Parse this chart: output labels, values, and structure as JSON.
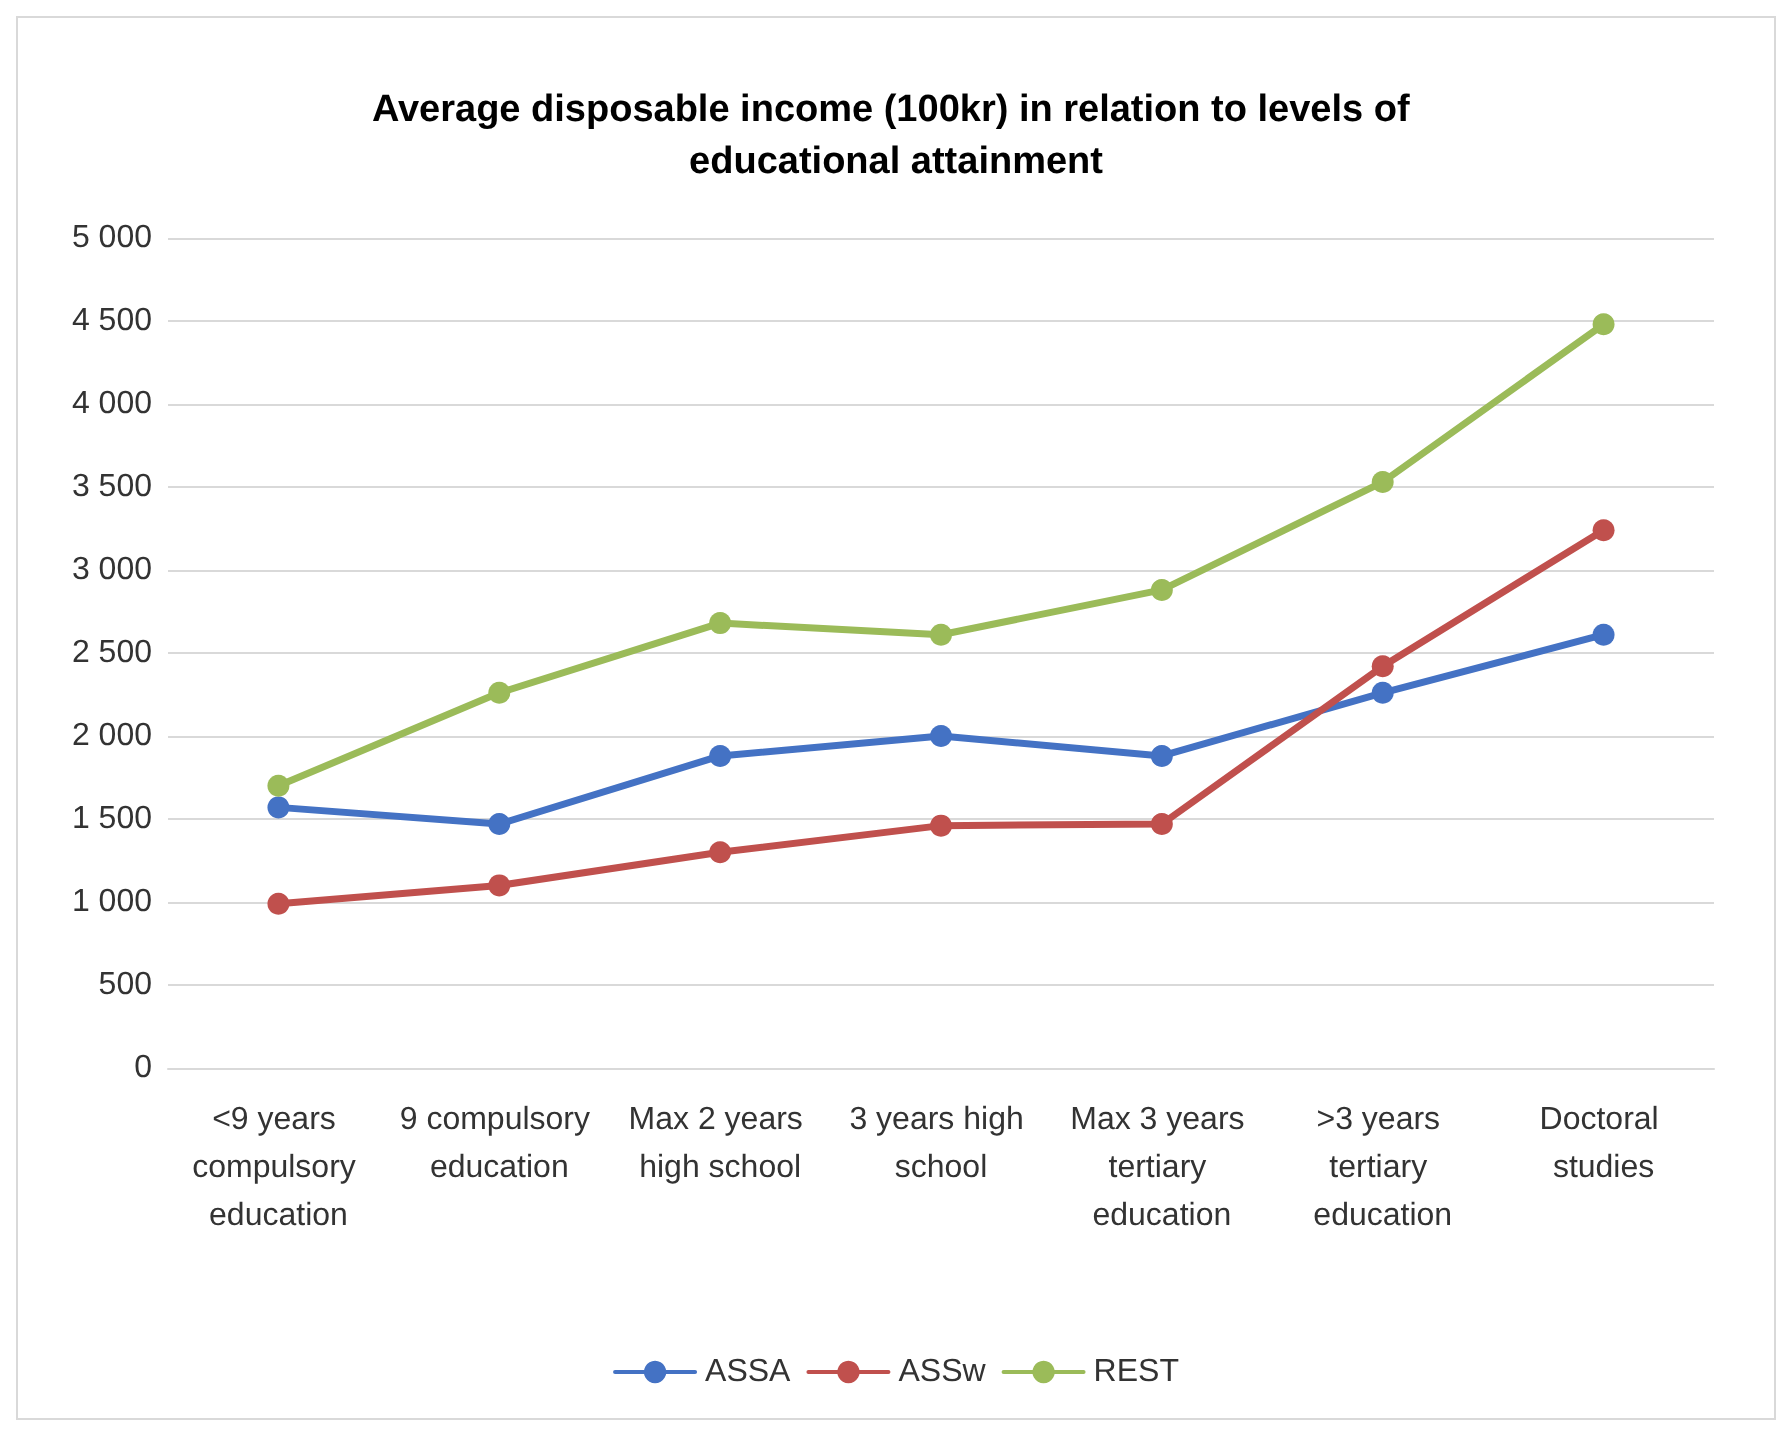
{
  "chart_data": {
    "type": "line",
    "title": "Average disposable income (100kr) in relation to levels of educational attainment",
    "categories": [
      "<9 years compulsory education",
      "9 compulsory education",
      "Max 2 years high school",
      "3 years high school",
      "Max 3 years tertiary education",
      ">3 years tertiary education",
      "Doctoral studies"
    ],
    "series": [
      {
        "name": "ASSA",
        "color": "#4472c4",
        "values": [
          1570,
          1470,
          1880,
          2000,
          1880,
          2260,
          2610
        ]
      },
      {
        "name": "ASSw",
        "color": "#c0504d",
        "values": [
          990,
          1100,
          1300,
          1460,
          1470,
          2420,
          3240
        ]
      },
      {
        "name": "REST",
        "color": "#9bbb59",
        "values": [
          1700,
          2260,
          2680,
          2610,
          2880,
          3530,
          4480
        ]
      }
    ],
    "ylim": [
      0,
      5000
    ],
    "yticks": [
      0,
      500,
      {
        "value": 1000,
        "label": "1 000"
      },
      {
        "value": 1500,
        "label": "1 500"
      },
      {
        "value": 2000,
        "label": "2 000"
      },
      {
        "value": 2500,
        "label": "2 500"
      },
      {
        "value": 3000,
        "label": "3 000"
      },
      {
        "value": 3500,
        "label": "3 500"
      },
      {
        "value": 4000,
        "label": "4 000"
      },
      {
        "value": 4500,
        "label": "4 500"
      },
      {
        "value": 5000,
        "label": "5 000"
      }
    ],
    "grid": "y",
    "legend": "bottom",
    "marker": "circle",
    "line_style": "solid"
  }
}
